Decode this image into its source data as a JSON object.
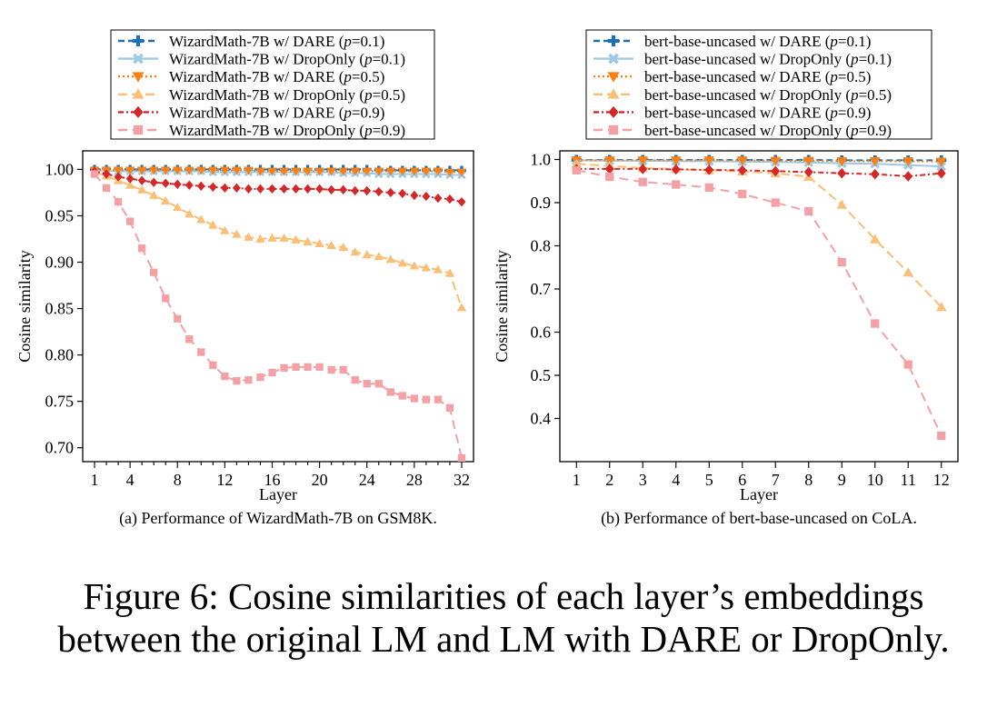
{
  "figure_caption": {
    "line1": "Figure 6: Cosine similarities of each layer’s embeddings",
    "line2": "between the original LM and LM with DARE or DropOnly."
  },
  "chart_data": [
    {
      "type": "line",
      "subcaption": "(a) Performance of WizardMath-7B on GSM8K.",
      "xlabel": "Layer",
      "ylabel": "Cosine similarity",
      "xlim": [
        0,
        33
      ],
      "ylim": [
        0.685,
        1.02
      ],
      "xticks": [
        1,
        4,
        8,
        12,
        16,
        20,
        24,
        28,
        32
      ],
      "yticks": [
        0.7,
        0.75,
        0.8,
        0.85,
        0.9,
        0.95,
        1.0
      ],
      "ytick_labels": [
        "0.70",
        "0.75",
        "0.80",
        "0.85",
        "0.90",
        "0.95",
        "1.00"
      ],
      "legend_position": "top",
      "x": [
        1,
        2,
        3,
        4,
        5,
        6,
        7,
        8,
        9,
        10,
        11,
        12,
        13,
        14,
        15,
        16,
        17,
        18,
        19,
        20,
        21,
        22,
        23,
        24,
        25,
        26,
        27,
        28,
        29,
        30,
        31,
        32
      ],
      "series": [
        {
          "name": "WizardMath-7B w/ DARE (p=0.1)",
          "method": "WizardMath-7B w/ DARE",
          "p": "0.1",
          "color": "#1f6fb4",
          "marker": "plus",
          "dash": "7,4",
          "values": [
            1.0,
            1.0,
            1.0,
            1.0,
            1.0,
            1.0,
            1.0,
            1.0,
            1.0,
            1.0,
            1.0,
            1.0,
            1.0,
            1.0,
            1.0,
            1.0,
            1.0,
            1.0,
            1.0,
            1.0,
            1.0,
            1.0,
            1.0,
            1.0,
            0.999,
            0.999,
            0.999,
            0.999,
            0.999,
            0.999,
            0.999,
            0.999
          ]
        },
        {
          "name": "WizardMath-7B w/ DropOnly (p=0.1)",
          "method": "WizardMath-7B w/ DropOnly",
          "p": "0.1",
          "color": "#9ec9e6",
          "marker": "x",
          "dash": "",
          "values": [
            0.999,
            0.999,
            0.998,
            0.998,
            0.998,
            0.998,
            0.998,
            0.998,
            0.998,
            0.998,
            0.997,
            0.997,
            0.997,
            0.997,
            0.997,
            0.997,
            0.997,
            0.997,
            0.997,
            0.997,
            0.997,
            0.996,
            0.996,
            0.996,
            0.995,
            0.995,
            0.995,
            0.995,
            0.995,
            0.995,
            0.994,
            0.994
          ]
        },
        {
          "name": "WizardMath-7B w/ DARE (p=0.5)",
          "method": "WizardMath-7B w/ DARE",
          "p": "0.5",
          "color": "#ff7f0e",
          "marker": "tri_down",
          "dash": "2,3",
          "values": [
            0.999,
            0.999,
            0.999,
            0.999,
            0.999,
            0.999,
            0.999,
            0.999,
            0.999,
            0.999,
            0.999,
            0.999,
            0.999,
            0.999,
            0.998,
            0.998,
            0.998,
            0.998,
            0.998,
            0.998,
            0.998,
            0.998,
            0.998,
            0.998,
            0.998,
            0.998,
            0.998,
            0.998,
            0.998,
            0.998,
            0.997,
            0.997
          ]
        },
        {
          "name": "WizardMath-7B w/ DropOnly (p=0.5)",
          "method": "WizardMath-7B w/ DropOnly",
          "p": "0.5",
          "color": "#f9bf76",
          "marker": "tri_up",
          "dash": "10,5",
          "values": [
            0.997,
            0.993,
            0.988,
            0.983,
            0.978,
            0.972,
            0.966,
            0.959,
            0.952,
            0.946,
            0.94,
            0.934,
            0.93,
            0.927,
            0.925,
            0.926,
            0.926,
            0.924,
            0.922,
            0.92,
            0.918,
            0.916,
            0.911,
            0.908,
            0.906,
            0.903,
            0.899,
            0.896,
            0.894,
            0.892,
            0.888,
            0.851
          ]
        },
        {
          "name": "WizardMath-7B w/ DARE (p=0.9)",
          "method": "WizardMath-7B w/ DARE",
          "p": "0.9",
          "color": "#d62728",
          "marker": "diamond",
          "dash": "6,3,2,3",
          "values": [
            0.998,
            0.995,
            0.992,
            0.99,
            0.988,
            0.986,
            0.985,
            0.984,
            0.983,
            0.982,
            0.981,
            0.98,
            0.98,
            0.979,
            0.979,
            0.979,
            0.979,
            0.979,
            0.979,
            0.979,
            0.978,
            0.978,
            0.977,
            0.977,
            0.976,
            0.975,
            0.974,
            0.972,
            0.971,
            0.969,
            0.968,
            0.965
          ]
        },
        {
          "name": "WizardMath-7B w/ DropOnly (p=0.9)",
          "method": "WizardMath-7B w/ DropOnly",
          "p": "0.9",
          "color": "#f4a1a6",
          "marker": "square",
          "dash": "10,6",
          "values": [
            0.995,
            0.98,
            0.965,
            0.944,
            0.915,
            0.889,
            0.861,
            0.839,
            0.817,
            0.803,
            0.789,
            0.777,
            0.772,
            0.773,
            0.776,
            0.781,
            0.786,
            0.787,
            0.787,
            0.787,
            0.784,
            0.784,
            0.773,
            0.769,
            0.769,
            0.76,
            0.756,
            0.753,
            0.752,
            0.752,
            0.743,
            0.689
          ]
        }
      ]
    },
    {
      "type": "line",
      "subcaption": "(b) Performance of bert-base-uncased on CoLA.",
      "xlabel": "Layer",
      "ylabel": "Cosine similarity",
      "xlim": [
        0.5,
        12.5
      ],
      "ylim": [
        0.3,
        1.02
      ],
      "xticks": [
        1,
        2,
        3,
        4,
        5,
        6,
        7,
        8,
        9,
        10,
        11,
        12
      ],
      "yticks": [
        0.4,
        0.5,
        0.6,
        0.7,
        0.8,
        0.9,
        1.0
      ],
      "ytick_labels": [
        "0.4",
        "0.5",
        "0.6",
        "0.7",
        "0.8",
        "0.9",
        "1.0"
      ],
      "legend_position": "top",
      "x": [
        1,
        2,
        3,
        4,
        5,
        6,
        7,
        8,
        9,
        10,
        11,
        12
      ],
      "series": [
        {
          "name": "bert-base-uncased w/ DARE (p=0.1)",
          "method": "bert-base-uncased w/ DARE",
          "p": "0.1",
          "color": "#1f6fb4",
          "marker": "plus",
          "dash": "7,4",
          "values": [
            0.999,
            0.999,
            0.999,
            0.999,
            0.999,
            0.999,
            0.999,
            0.999,
            0.998,
            0.998,
            0.998,
            0.998
          ]
        },
        {
          "name": "bert-base-uncased w/ DropOnly (p=0.1)",
          "method": "bert-base-uncased w/ DropOnly",
          "p": "0.1",
          "color": "#9ec9e6",
          "marker": "x",
          "dash": "",
          "values": [
            0.998,
            0.997,
            0.997,
            0.996,
            0.996,
            0.995,
            0.994,
            0.993,
            0.991,
            0.99,
            0.987,
            0.984
          ]
        },
        {
          "name": "bert-base-uncased w/ DARE (p=0.5)",
          "method": "bert-base-uncased w/ DARE",
          "p": "0.5",
          "color": "#ff7f0e",
          "marker": "tri_down",
          "dash": "2,3",
          "values": [
            0.998,
            0.998,
            0.998,
            0.998,
            0.998,
            0.998,
            0.997,
            0.997,
            0.996,
            0.996,
            0.996,
            0.995
          ]
        },
        {
          "name": "bert-base-uncased w/ DropOnly (p=0.5)",
          "method": "bert-base-uncased w/ DropOnly",
          "p": "0.5",
          "color": "#f9bf76",
          "marker": "tri_up",
          "dash": "10,5",
          "values": [
            0.99,
            0.985,
            0.98,
            0.978,
            0.975,
            0.972,
            0.968,
            0.96,
            0.895,
            0.815,
            0.738,
            0.658
          ]
        },
        {
          "name": "bert-base-uncased w/ DARE (p=0.9)",
          "method": "bert-base-uncased w/ DARE",
          "p": "0.9",
          "color": "#d62728",
          "marker": "diamond",
          "dash": "6,3,2,3",
          "values": [
            0.978,
            0.978,
            0.978,
            0.977,
            0.976,
            0.975,
            0.973,
            0.971,
            0.968,
            0.966,
            0.961,
            0.968
          ]
        },
        {
          "name": "bert-base-uncased w/ DropOnly (p=0.9)",
          "method": "bert-base-uncased w/ DropOnly",
          "p": "0.9",
          "color": "#f4a1a6",
          "marker": "square",
          "dash": "10,6",
          "values": [
            0.975,
            0.96,
            0.948,
            0.942,
            0.935,
            0.92,
            0.9,
            0.88,
            0.762,
            0.62,
            0.525,
            0.36
          ]
        }
      ]
    }
  ]
}
